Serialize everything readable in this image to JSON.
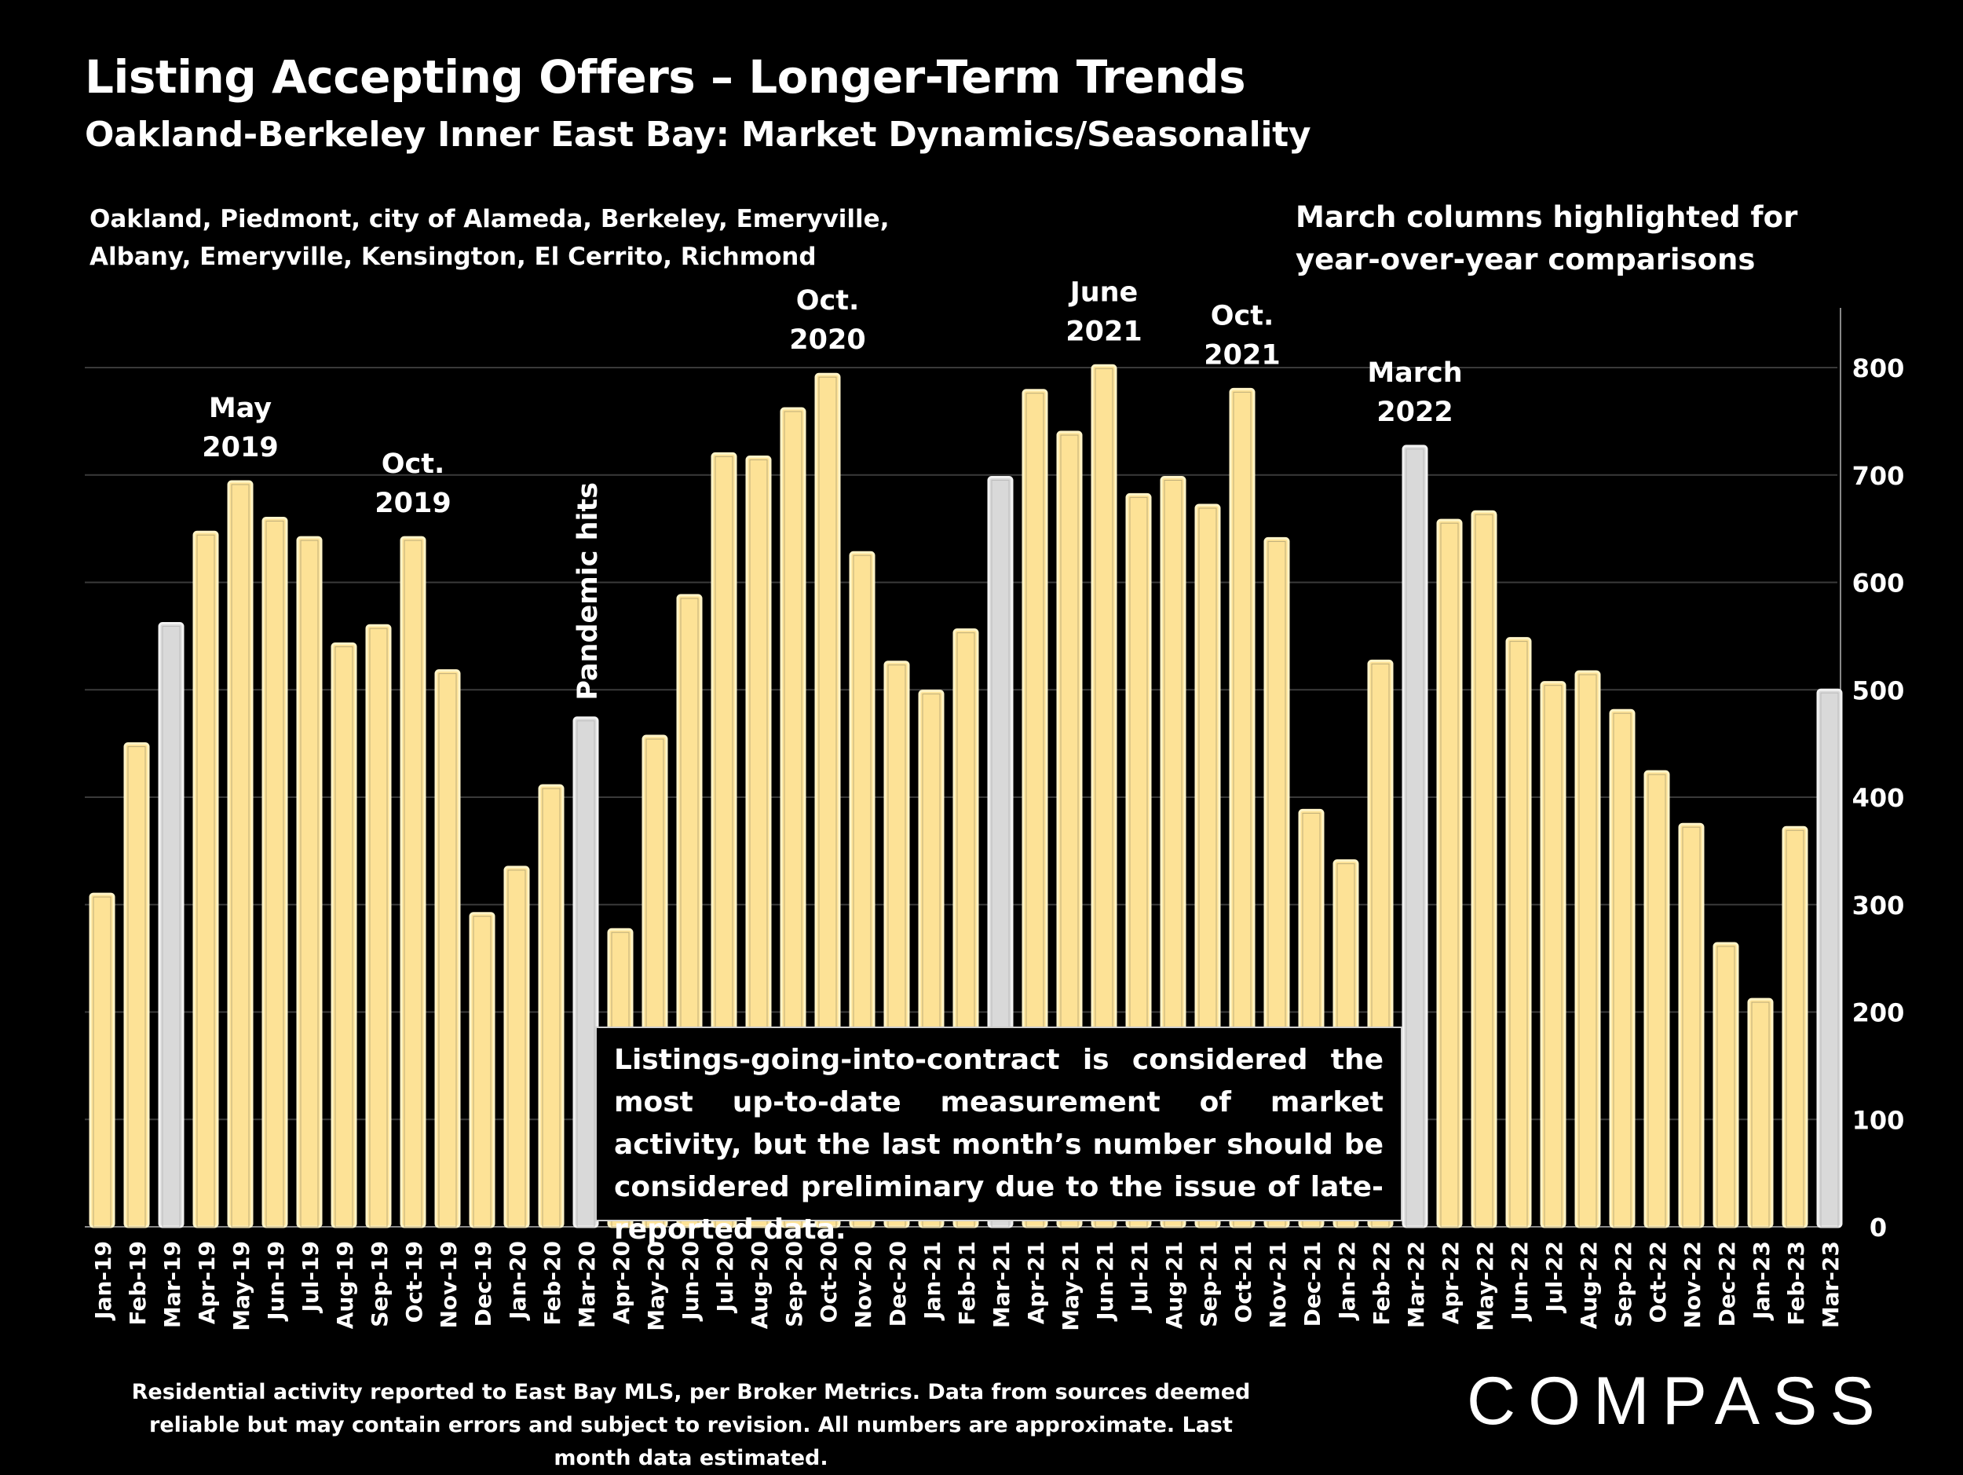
{
  "header": {
    "title": "Listing Accepting Offers – Longer-Term Trends",
    "subtitle": "Oakland-Berkeley Inner East Bay: Market Dynamics/Seasonality"
  },
  "regions_note": "Oakland, Piedmont, city of Alameda, Berkeley, Emeryville, Albany, Emeryville, Kensington, El Cerrito, Richmond",
  "highlight_note": "March columns highlighted for year-over-year comparisons",
  "callout": "Listings-going-into-contract is considered the most up-to-date measurement of market activity, but the last month’s number should be considered preliminary due to the issue of late-reported data.",
  "footnote": "Residential activity reported to East Bay MLS, per Broker Metrics. Data from sources deemed reliable but may contain errors and subject to revision. All numbers are approximate. Last month data estimated.",
  "brand": {
    "logo_text": "COMPASS"
  },
  "chart_data": {
    "type": "bar",
    "title": "",
    "xlabel": "",
    "ylabel": "",
    "ylim": [
      0,
      850
    ],
    "yticks": [
      0,
      100,
      200,
      300,
      400,
      500,
      600,
      700,
      800
    ],
    "y_axis_side": "right",
    "grid": true,
    "categories": [
      "Jan-19",
      "Feb-19",
      "Mar-19",
      "Apr-19",
      "May-19",
      "Jun-19",
      "Jul-19",
      "Aug-19",
      "Sep-19",
      "Oct-19",
      "Nov-19",
      "Dec-19",
      "Jan-20",
      "Feb-20",
      "Mar-20",
      "Apr-20",
      "May-20",
      "Jun-20",
      "Jul-20",
      "Aug-20",
      "Sep-20",
      "Oct-20",
      "Nov-20",
      "Dec-20",
      "Jan-21",
      "Feb-21",
      "Mar-21",
      "Apr-21",
      "May-21",
      "Jun-21",
      "Jul-21",
      "Aug-21",
      "Sep-21",
      "Oct-21",
      "Nov-21",
      "Dec-21",
      "Jan-22",
      "Feb-22",
      "Mar-22",
      "Apr-22",
      "May-22",
      "Jun-22",
      "Jul-22",
      "Aug-22",
      "Sep-22",
      "Oct-22",
      "Nov-22",
      "Dec-22",
      "Jan-23",
      "Feb-23",
      "Mar-23"
    ],
    "values": [
      310,
      450,
      562,
      647,
      694,
      660,
      642,
      543,
      560,
      642,
      518,
      292,
      335,
      411,
      474,
      277,
      457,
      588,
      720,
      717,
      762,
      794,
      628,
      526,
      499,
      556,
      698,
      779,
      740,
      802,
      682,
      698,
      672,
      780,
      641,
      388,
      341,
      527,
      727,
      658,
      666,
      548,
      507,
      517,
      481,
      424,
      375,
      264,
      212,
      372,
      500
    ],
    "highlighted_categories": [
      "Mar-19",
      "Mar-20",
      "Mar-21",
      "Mar-22",
      "Mar-23"
    ],
    "colors": {
      "bar": "#fde296",
      "highlight": "#d9d9d9",
      "outline": "#bfae7a",
      "grid": "#3a3a3a"
    },
    "annotations": [
      {
        "text": "May 2019",
        "category": "May-19"
      },
      {
        "text": "Oct. 2019",
        "category": "Oct-19"
      },
      {
        "text": "Pandemic hits",
        "category": "Mar-20",
        "orientation": "vertical"
      },
      {
        "text": "Oct. 2020",
        "category": "Oct-20"
      },
      {
        "text": "June 2021",
        "category": "Jun-21"
      },
      {
        "text": "Oct. 2021",
        "category": "Oct-21"
      },
      {
        "text": "March 2022",
        "category": "Mar-22"
      }
    ]
  }
}
